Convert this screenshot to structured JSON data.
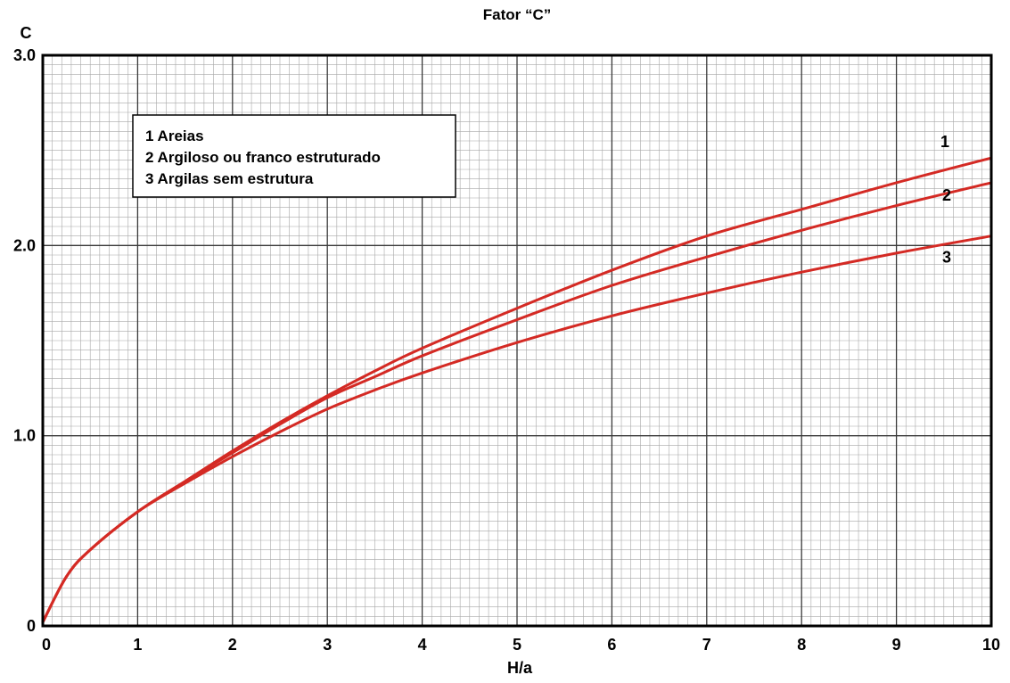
{
  "chart_data": {
    "type": "line",
    "title": "Fator “C”",
    "xlabel": "H/a",
    "ylabel": "C",
    "xlim": [
      0,
      10
    ],
    "ylim": [
      0,
      3.0
    ],
    "x_ticks": [
      "0",
      "1",
      "2",
      "3",
      "4",
      "5",
      "6",
      "7",
      "8",
      "9",
      "10"
    ],
    "y_ticks": [
      "0",
      "1.0",
      "2.0",
      "3.0"
    ],
    "grid": true,
    "legend_position": "top-left",
    "legend": [
      "1 Areias",
      "2 Argiloso ou franco estruturado",
      "3 Argilas sem estrutura"
    ],
    "series": [
      {
        "label": "1",
        "color": "#d42a24",
        "x": [
          0,
          0.25,
          0.5,
          1,
          1.5,
          2,
          2.5,
          3,
          3.5,
          4,
          5,
          6,
          7,
          8,
          9,
          10
        ],
        "y": [
          0.02,
          0.26,
          0.4,
          0.6,
          0.76,
          0.92,
          1.07,
          1.21,
          1.34,
          1.46,
          1.67,
          1.87,
          2.05,
          2.19,
          2.33,
          2.46
        ]
      },
      {
        "label": "2",
        "color": "#d42a24",
        "x": [
          0,
          0.25,
          0.5,
          1,
          1.5,
          2,
          2.5,
          3,
          3.5,
          4,
          5,
          6,
          7,
          8,
          9,
          10
        ],
        "y": [
          0.02,
          0.26,
          0.4,
          0.6,
          0.76,
          0.91,
          1.06,
          1.2,
          1.31,
          1.42,
          1.61,
          1.79,
          1.94,
          2.08,
          2.21,
          2.33
        ]
      },
      {
        "label": "3",
        "color": "#d42a24",
        "x": [
          0,
          0.25,
          0.5,
          1,
          1.5,
          2,
          2.5,
          3,
          3.5,
          4,
          5,
          6,
          7,
          8,
          9,
          10
        ],
        "y": [
          0.02,
          0.26,
          0.4,
          0.6,
          0.75,
          0.89,
          1.02,
          1.14,
          1.24,
          1.33,
          1.49,
          1.63,
          1.75,
          1.86,
          1.96,
          2.05
        ]
      }
    ]
  }
}
